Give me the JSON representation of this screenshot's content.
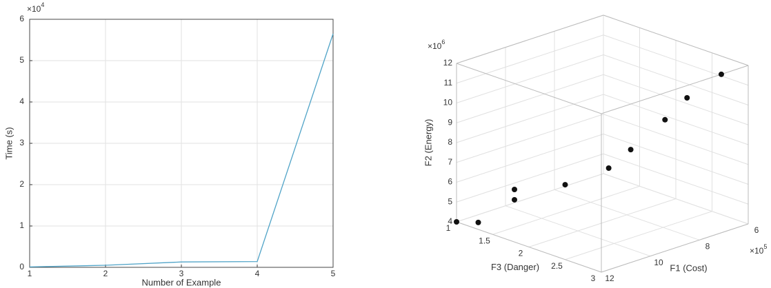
{
  "chart_data": [
    {
      "type": "line",
      "xlabel": "Number of Example",
      "ylabel": "Time (s)",
      "y_multiplier": {
        "base": "×10",
        "exp": "4"
      },
      "x": [
        1,
        2,
        3,
        4,
        5
      ],
      "series": [
        {
          "color": "#4fa3c7",
          "values": [
            0.01,
            0.05,
            0.13,
            0.14,
            5.65
          ]
        }
      ],
      "xlim": [
        1,
        5
      ],
      "xticks": [
        1,
        2,
        3,
        4,
        5
      ],
      "ylim": [
        0,
        6
      ],
      "yticks": [
        0,
        1,
        2,
        3,
        4,
        5,
        6
      ],
      "grid": true
    },
    {
      "type": "scatter3d",
      "xlabel": "F1 (Cost)",
      "ylabel": "F3 (Danger)",
      "zlabel": "F2 (Energy)",
      "x_multiplier": {
        "base": "×10",
        "exp": "5"
      },
      "z_multiplier": {
        "base": "×10",
        "exp": "6"
      },
      "x": [
        12,
        12,
        12,
        12,
        12,
        11.7,
        10.8,
        9.4,
        8.5,
        7.1
      ],
      "y": [
        1,
        1.3,
        1.8,
        1.8,
        2.5,
        3,
        3,
        3,
        3,
        3
      ],
      "z": [
        4.0,
        4.35,
        6.65,
        6.13,
        7.78,
        9.13,
        9.7,
        10.64,
        11.38,
        12.0
      ],
      "color": "#111111",
      "xlim": [
        6,
        12
      ],
      "xticks": [
        6,
        8,
        10,
        12
      ],
      "ylim": [
        1,
        3
      ],
      "yticks": [
        1,
        1.5,
        2,
        2.5,
        3
      ],
      "zlim": [
        4,
        12
      ],
      "zticks": [
        4,
        5,
        6,
        7,
        8,
        9,
        10,
        11,
        12
      ],
      "grid": true
    }
  ]
}
